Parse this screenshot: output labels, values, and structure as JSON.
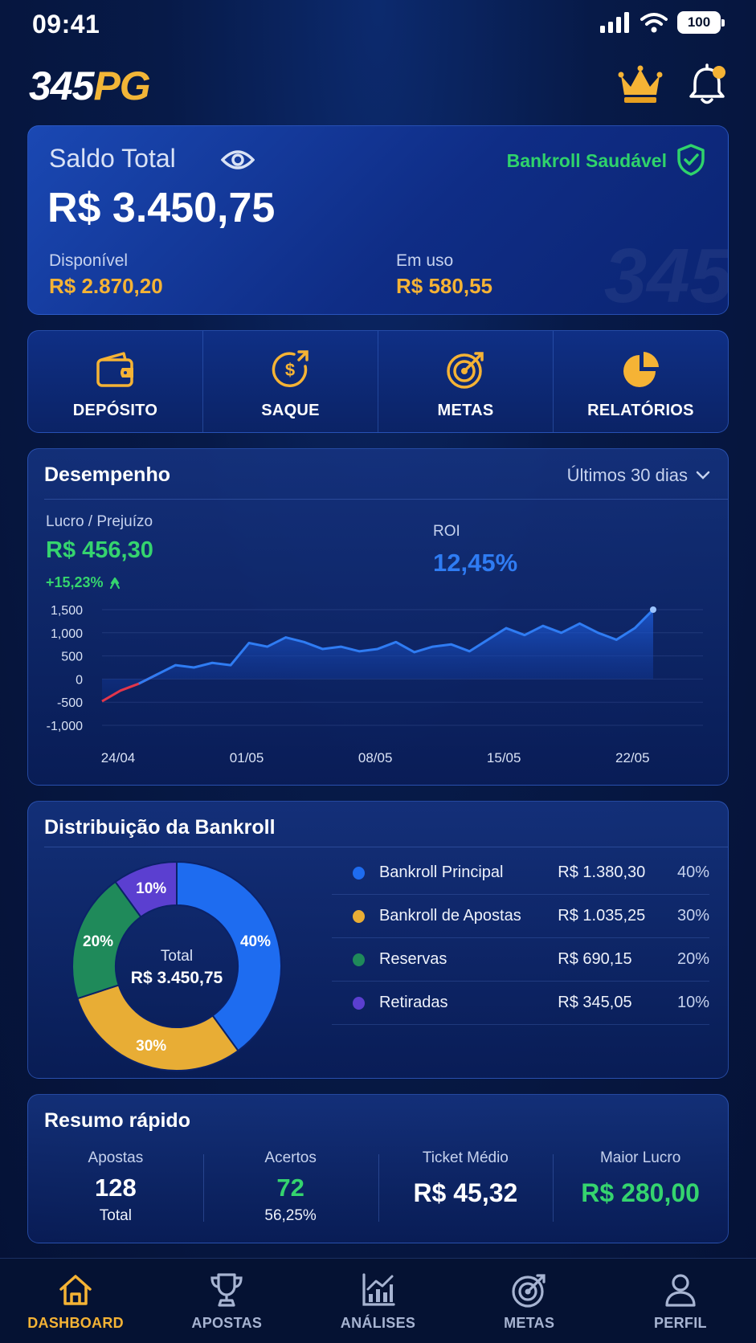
{
  "status_bar": {
    "time": "09:41",
    "battery": "100"
  },
  "header": {
    "logo_part1": "345",
    "logo_part2": "PG"
  },
  "balance": {
    "title": "Saldo Total",
    "health": "Bankroll Saudável",
    "total": "R$ 3.450,75",
    "available_label": "Disponível",
    "available_value": "R$ 2.870,20",
    "in_use_label": "Em uso",
    "in_use_value": "R$ 580,55",
    "watermark": "345"
  },
  "actions": [
    {
      "label": "DEPÓSITO",
      "icon": "wallet-icon"
    },
    {
      "label": "SAQUE",
      "icon": "coin-withdraw-icon"
    },
    {
      "label": "METAS",
      "icon": "target-icon"
    },
    {
      "label": "RELATÓRIOS",
      "icon": "pie-chart-icon"
    }
  ],
  "performance": {
    "title": "Desempenho",
    "period": "Últimos 30 dias",
    "pl_label": "Lucro / Prejuízo",
    "pl_value": "R$ 456,30",
    "pl_change": "+15,23%",
    "roi_label": "ROI",
    "roi_value": "12,45%"
  },
  "chart_data": {
    "type": "line",
    "title": "",
    "xlabel": "",
    "ylabel": "",
    "ylim": [
      -1000,
      1500
    ],
    "y_ticks": [
      "1,500",
      "1,000",
      "500",
      "0",
      "-500",
      "-1,000"
    ],
    "x_tick_labels": [
      "24/04",
      "01/05",
      "08/05",
      "15/05",
      "22/05"
    ],
    "x": [
      "24/04",
      "25/04",
      "26/04",
      "27/04",
      "28/04",
      "29/04",
      "30/04",
      "01/05",
      "02/05",
      "03/05",
      "04/05",
      "05/05",
      "06/05",
      "07/05",
      "08/05",
      "09/05",
      "10/05",
      "11/05",
      "12/05",
      "13/05",
      "14/05",
      "15/05",
      "16/05",
      "17/05",
      "18/05",
      "19/05",
      "20/05",
      "21/05",
      "22/05",
      "23/05",
      "24/05"
    ],
    "values": [
      -480,
      -250,
      -100,
      100,
      300,
      250,
      350,
      300,
      780,
      700,
      900,
      800,
      650,
      700,
      600,
      650,
      800,
      580,
      700,
      750,
      600,
      850,
      1100,
      950,
      1150,
      1000,
      1200,
      1000,
      850,
      1100,
      1500
    ],
    "colors": {
      "line": "#2f7cf3",
      "negative": "#e2364b"
    }
  },
  "distribution": {
    "title": "Distribuição da Bankroll",
    "center_label": "Total",
    "center_value": "R$ 3.450,75",
    "items": [
      {
        "name": "Bankroll Principal",
        "amount": "R$ 1.380,30",
        "pct": "40%",
        "value": 40,
        "color": "#1e6cf0"
      },
      {
        "name": "Bankroll de Apostas",
        "amount": "R$ 1.035,25",
        "pct": "30%",
        "value": 30,
        "color": "#e8ad35"
      },
      {
        "name": "Reservas",
        "amount": "R$ 690,15",
        "pct": "20%",
        "value": 20,
        "color": "#1f8a5a"
      },
      {
        "name": "Retiradas",
        "amount": "R$ 345,05",
        "pct": "10%",
        "value": 10,
        "color": "#5b3fd0"
      }
    ]
  },
  "summary": {
    "title": "Resumo rápido",
    "bets_label": "Apostas",
    "bets_value": "128",
    "bets_sub": "Total",
    "hits_label": "Acertos",
    "hits_value": "72",
    "hits_sub": "56,25%",
    "ticket_label": "Ticket Médio",
    "ticket_value": "R$ 45,32",
    "max_label": "Maior Lucro",
    "max_value": "R$ 280,00"
  },
  "nav": [
    {
      "label": "DASHBOARD",
      "icon": "home-icon"
    },
    {
      "label": "APOSTAS",
      "icon": "trophy-icon"
    },
    {
      "label": "ANÁLISES",
      "icon": "analytics-icon"
    },
    {
      "label": "METAS",
      "icon": "target-icon"
    },
    {
      "label": "PERFIL",
      "icon": "user-icon"
    }
  ]
}
